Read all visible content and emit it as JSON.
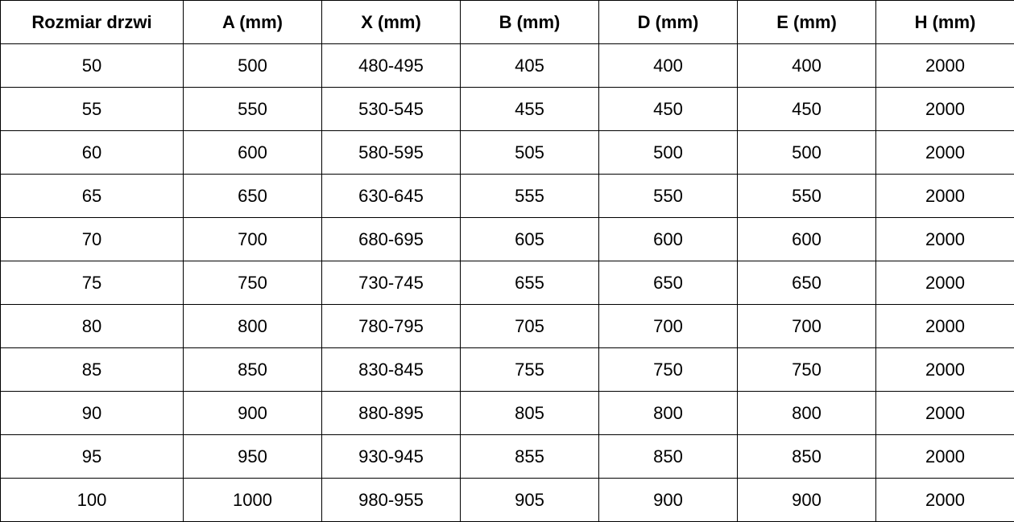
{
  "table": {
    "headers": [
      "Rozmiar drzwi",
      "A (mm)",
      "X (mm)",
      "B (mm)",
      "D (mm)",
      "E (mm)",
      "H (mm)"
    ],
    "rows": [
      [
        "50",
        "500",
        "480-495",
        "405",
        "400",
        "400",
        "2000"
      ],
      [
        "55",
        "550",
        "530-545",
        "455",
        "450",
        "450",
        "2000"
      ],
      [
        "60",
        "600",
        "580-595",
        "505",
        "500",
        "500",
        "2000"
      ],
      [
        "65",
        "650",
        "630-645",
        "555",
        "550",
        "550",
        "2000"
      ],
      [
        "70",
        "700",
        "680-695",
        "605",
        "600",
        "600",
        "2000"
      ],
      [
        "75",
        "750",
        "730-745",
        "655",
        "650",
        "650",
        "2000"
      ],
      [
        "80",
        "800",
        "780-795",
        "705",
        "700",
        "700",
        "2000"
      ],
      [
        "85",
        "850",
        "830-845",
        "755",
        "750",
        "750",
        "2000"
      ],
      [
        "90",
        "900",
        "880-895",
        "805",
        "800",
        "800",
        "2000"
      ],
      [
        "95",
        "950",
        "930-945",
        "855",
        "850",
        "850",
        "2000"
      ],
      [
        "100",
        "1000",
        "980-955",
        "905",
        "900",
        "900",
        "2000"
      ]
    ]
  }
}
